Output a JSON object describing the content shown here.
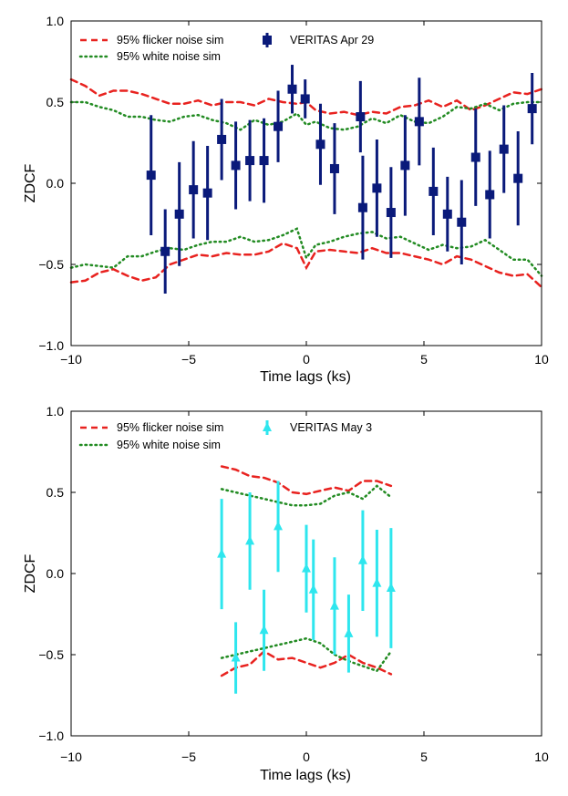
{
  "chart_data": [
    {
      "type": "scatter",
      "title": "",
      "xlabel": "Time lags (ks)",
      "ylabel": "ZDCF",
      "xlim": [
        -10,
        10
      ],
      "ylim": [
        -1.0,
        1.0
      ],
      "xticks": [
        -10,
        -5,
        0,
        5,
        10
      ],
      "xtick_labels": [
        "−10",
        "−5",
        "0",
        "5",
        "10"
      ],
      "yticks": [
        -1.0,
        -0.5,
        0.0,
        0.5,
        1.0
      ],
      "ytick_labels": [
        "−1.0",
        "−0.5",
        "0.0",
        "0.5",
        "1.0"
      ],
      "legend_position": "top",
      "series": [
        {
          "name": "95% flicker noise sim",
          "kind": "band",
          "style": "dashed",
          "color": "#e8221f",
          "x": [
            -10,
            -9.4,
            -8.8,
            -8.2,
            -7.6,
            -7,
            -6.4,
            -5.8,
            -5.2,
            -4.6,
            -4,
            -3.4,
            -2.8,
            -2.2,
            -1.6,
            -1,
            -0.4,
            0,
            0.4,
            1,
            1.6,
            2.2,
            2.8,
            3.4,
            4,
            4.6,
            5.2,
            5.8,
            6.4,
            7,
            7.6,
            8.2,
            8.8,
            9.4,
            10
          ],
          "upper": [
            0.64,
            0.6,
            0.54,
            0.57,
            0.57,
            0.55,
            0.52,
            0.49,
            0.49,
            0.51,
            0.48,
            0.5,
            0.5,
            0.48,
            0.52,
            0.5,
            0.49,
            0.5,
            0.45,
            0.43,
            0.44,
            0.42,
            0.44,
            0.43,
            0.47,
            0.48,
            0.51,
            0.47,
            0.51,
            0.45,
            0.48,
            0.52,
            0.56,
            0.55,
            0.58
          ],
          "lower": [
            -0.61,
            -0.6,
            -0.55,
            -0.53,
            -0.57,
            -0.6,
            -0.58,
            -0.5,
            -0.47,
            -0.44,
            -0.45,
            -0.43,
            -0.44,
            -0.44,
            -0.42,
            -0.37,
            -0.4,
            -0.52,
            -0.42,
            -0.41,
            -0.42,
            -0.43,
            -0.4,
            -0.43,
            -0.43,
            -0.45,
            -0.47,
            -0.5,
            -0.45,
            -0.47,
            -0.51,
            -0.55,
            -0.57,
            -0.56,
            -0.64
          ]
        },
        {
          "name": "95% white noise sim",
          "kind": "band",
          "style": "dotted",
          "color": "#228b22",
          "x": [
            -10,
            -9.4,
            -8.8,
            -8.2,
            -7.6,
            -7,
            -6.4,
            -5.8,
            -5.2,
            -4.6,
            -4,
            -3.4,
            -2.8,
            -2.2,
            -1.6,
            -1,
            -0.4,
            0,
            0.4,
            1,
            1.6,
            2.2,
            2.8,
            3.4,
            4,
            4.6,
            5.2,
            5.8,
            6.4,
            7,
            7.6,
            8.2,
            8.8,
            9.4,
            10
          ],
          "upper": [
            0.5,
            0.5,
            0.47,
            0.45,
            0.41,
            0.41,
            0.39,
            0.38,
            0.41,
            0.42,
            0.39,
            0.37,
            0.33,
            0.39,
            0.36,
            0.38,
            0.43,
            0.36,
            0.38,
            0.34,
            0.33,
            0.35,
            0.4,
            0.37,
            0.42,
            0.38,
            0.37,
            0.41,
            0.47,
            0.46,
            0.49,
            0.45,
            0.49,
            0.5,
            0.5
          ],
          "lower": [
            -0.52,
            -0.5,
            -0.51,
            -0.52,
            -0.45,
            -0.45,
            -0.42,
            -0.4,
            -0.41,
            -0.38,
            -0.36,
            -0.36,
            -0.33,
            -0.36,
            -0.35,
            -0.32,
            -0.28,
            -0.46,
            -0.38,
            -0.36,
            -0.33,
            -0.31,
            -0.3,
            -0.34,
            -0.33,
            -0.37,
            -0.41,
            -0.38,
            -0.4,
            -0.39,
            -0.35,
            -0.41,
            -0.47,
            -0.47,
            -0.57
          ]
        },
        {
          "name": "VERITAS Apr 29",
          "kind": "errorbar",
          "marker": "square",
          "color": "#0a1a7a",
          "x": [
            -6.6,
            -6.0,
            -5.4,
            -4.8,
            -4.2,
            -3.6,
            -3.0,
            -2.4,
            -1.8,
            -1.2,
            -0.6,
            -0.05,
            0.6,
            1.2,
            2.3,
            2.4,
            3.0,
            3.6,
            4.2,
            4.8,
            5.4,
            6.0,
            6.6,
            7.2,
            7.8,
            8.4,
            9.0,
            9.6
          ],
          "y": [
            0.05,
            -0.42,
            -0.19,
            -0.04,
            -0.06,
            0.27,
            0.11,
            0.14,
            0.14,
            0.35,
            0.58,
            0.52,
            0.24,
            0.09,
            0.41,
            -0.15,
            -0.03,
            -0.18,
            0.11,
            0.38,
            -0.05,
            -0.19,
            -0.24,
            0.16,
            -0.07,
            0.21,
            0.03,
            0.46
          ],
          "yerr": [
            0.37,
            0.26,
            0.32,
            0.3,
            0.29,
            0.25,
            0.27,
            0.25,
            0.26,
            0.22,
            0.15,
            0.12,
            0.25,
            0.28,
            0.22,
            0.32,
            0.3,
            0.28,
            0.31,
            0.27,
            0.27,
            0.23,
            0.26,
            0.3,
            0.27,
            0.27,
            0.29,
            0.22
          ]
        }
      ]
    },
    {
      "type": "scatter",
      "title": "",
      "xlabel": "Time lags (ks)",
      "ylabel": "ZDCF",
      "xlim": [
        -10,
        10
      ],
      "ylim": [
        -1.0,
        1.0
      ],
      "xticks": [
        -10,
        -5,
        0,
        5,
        10
      ],
      "xtick_labels": [
        "−10",
        "−5",
        "0",
        "5",
        "10"
      ],
      "yticks": [
        -1.0,
        -0.5,
        0.0,
        0.5,
        1.0
      ],
      "ytick_labels": [
        "−1.0",
        "−0.5",
        "0.0",
        "0.5",
        "1.0"
      ],
      "legend_position": "top",
      "series": [
        {
          "name": "95% flicker noise sim",
          "kind": "band",
          "style": "dashed",
          "color": "#e8221f",
          "x": [
            -3.6,
            -3.0,
            -2.4,
            -1.8,
            -1.2,
            -0.6,
            0.0,
            0.6,
            1.2,
            1.8,
            2.4,
            3.0,
            3.6
          ],
          "upper": [
            0.66,
            0.64,
            0.6,
            0.59,
            0.56,
            0.5,
            0.49,
            0.51,
            0.53,
            0.51,
            0.57,
            0.57,
            0.54
          ],
          "lower": [
            -0.63,
            -0.58,
            -0.56,
            -0.48,
            -0.53,
            -0.52,
            -0.55,
            -0.58,
            -0.55,
            -0.5,
            -0.55,
            -0.58,
            -0.62
          ]
        },
        {
          "name": "95% white noise sim",
          "kind": "band",
          "style": "dotted",
          "color": "#228b22",
          "x": [
            -3.6,
            -3.0,
            -2.4,
            -1.8,
            -1.2,
            -0.6,
            0.0,
            0.6,
            1.2,
            1.8,
            2.4,
            3.0,
            3.6
          ],
          "upper": [
            0.52,
            0.5,
            0.48,
            0.46,
            0.44,
            0.42,
            0.42,
            0.43,
            0.48,
            0.5,
            0.46,
            0.54,
            0.47
          ],
          "lower": [
            -0.52,
            -0.5,
            -0.48,
            -0.46,
            -0.44,
            -0.42,
            -0.4,
            -0.43,
            -0.5,
            -0.54,
            -0.57,
            -0.6,
            -0.48
          ]
        },
        {
          "name": "VERITAS May 3",
          "kind": "errorbar",
          "marker": "triangle",
          "color": "#2ee6ee",
          "x": [
            -3.6,
            -3.0,
            -2.4,
            -1.8,
            -1.2,
            -0.6,
            0.0,
            0.3,
            1.2,
            1.8,
            2.4,
            3.0,
            3.6
          ],
          "y": [
            0.12,
            -0.52,
            0.2,
            -0.35,
            0.29,
            null,
            0.03,
            -0.1,
            -0.2,
            -0.37,
            0.08,
            -0.06,
            -0.09
          ],
          "yerr": [
            0.34,
            0.22,
            0.3,
            0.25,
            0.28,
            null,
            0.27,
            0.31,
            0.3,
            0.24,
            0.31,
            0.33,
            0.37
          ]
        }
      ]
    }
  ]
}
